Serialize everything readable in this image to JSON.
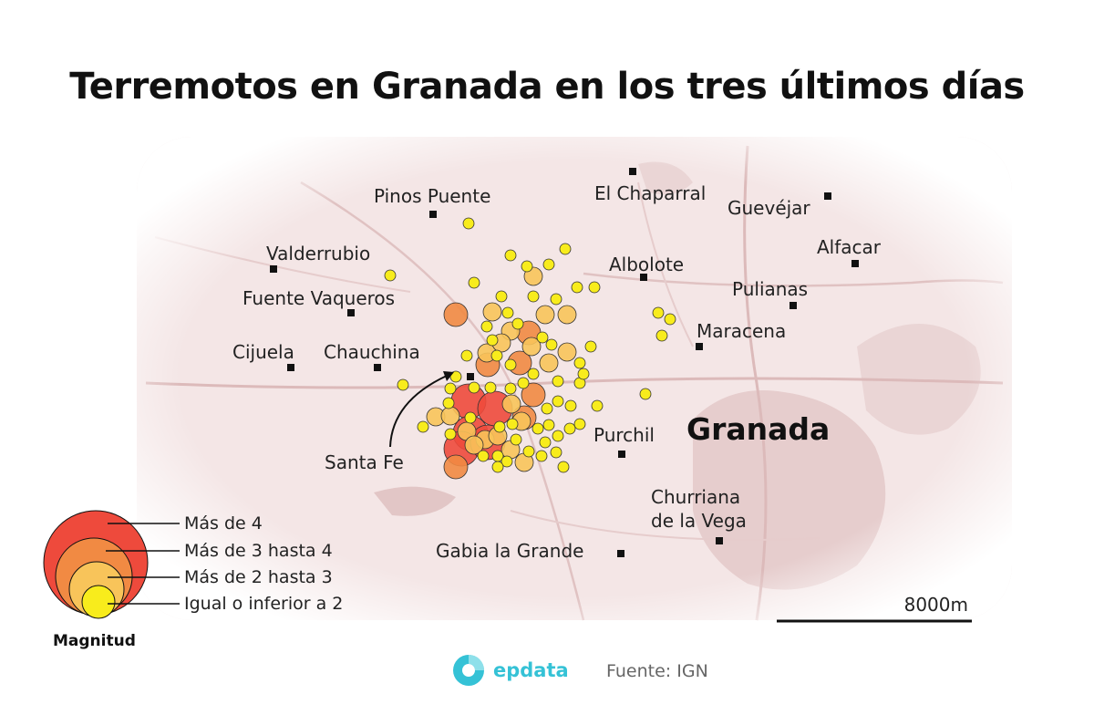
{
  "title": "Terremotos en Granada en los tres últimos días",
  "map": {
    "places": [
      {
        "name": "Pinos Puente"
      },
      {
        "name": "El Chaparral"
      },
      {
        "name": "Guevéjar"
      },
      {
        "name": "Alfacar"
      },
      {
        "name": "Valderrubio"
      },
      {
        "name": "Albolote"
      },
      {
        "name": "Pulianas"
      },
      {
        "name": "Fuente Vaqueros"
      },
      {
        "name": "Maracena"
      },
      {
        "name": "Cijuela"
      },
      {
        "name": "Chauchina"
      },
      {
        "name": "Santa Fe"
      },
      {
        "name": "Purchil"
      },
      {
        "name": "Churriana"
      },
      {
        "name": "de la Vega"
      },
      {
        "name": "Gabia la Grande"
      }
    ],
    "city": "Granada",
    "scale_label": "8000m"
  },
  "legend": {
    "title": "Magnitud",
    "items": [
      {
        "label": "Más de 4",
        "color": "#ee4a3c"
      },
      {
        "label": "Más de 3 hasta 4",
        "color": "#f18a43"
      },
      {
        "label": "Más de 2 hasta 3",
        "color": "#f8c45a"
      },
      {
        "label": "Igual o inferior a 2",
        "color": "#f8ec1c"
      }
    ]
  },
  "footer": {
    "brand": "epdata",
    "source": "Fuente: IGN"
  }
}
